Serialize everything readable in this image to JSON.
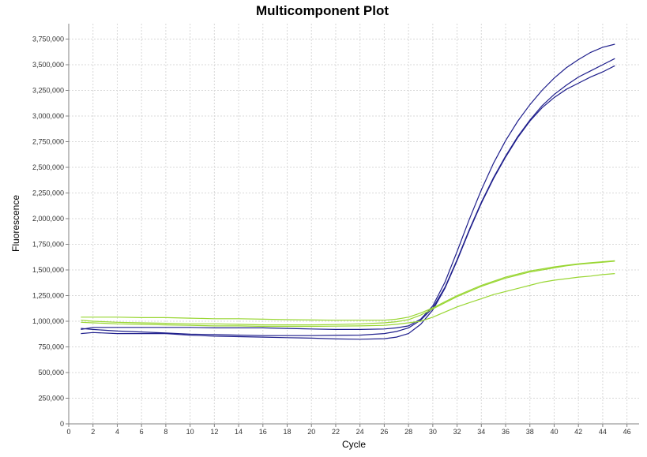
{
  "chart_data": {
    "type": "line",
    "title": "Multicomponent Plot",
    "xlabel": "Cycle",
    "ylabel": "Fluorescence",
    "xlim": [
      0,
      47
    ],
    "ylim": [
      0,
      3900000
    ],
    "x_ticks": [
      0,
      2,
      4,
      6,
      8,
      10,
      12,
      14,
      16,
      18,
      20,
      22,
      24,
      26,
      28,
      30,
      32,
      34,
      36,
      38,
      40,
      42,
      44,
      46
    ],
    "y_ticks": [
      0,
      250000,
      500000,
      750000,
      1000000,
      1250000,
      1500000,
      1750000,
      2000000,
      2250000,
      2500000,
      2750000,
      3000000,
      3250000,
      3500000,
      3750000
    ],
    "y_tick_labels": [
      "0",
      "250,000",
      "500,000",
      "750,000",
      "1,000,000",
      "1,250,000",
      "1,500,000",
      "1,750,000",
      "2,000,000",
      "2,250,000",
      "2,500,000",
      "2,750,000",
      "3,000,000",
      "3,250,000",
      "3,500,000",
      "3,750,000"
    ],
    "grid": true,
    "legend": "none",
    "series": [
      {
        "color": "#1f1f8c",
        "x": [
          1,
          2,
          4,
          6,
          8,
          10,
          12,
          14,
          16,
          18,
          20,
          22,
          24,
          26,
          27,
          28,
          29,
          30,
          31,
          32,
          33,
          34,
          35,
          36,
          37,
          38,
          39,
          40,
          41,
          42,
          43,
          44,
          45
        ],
        "values": [
          920000,
          940000,
          940000,
          940000,
          940000,
          940000,
          935000,
          935000,
          935000,
          930000,
          925000,
          920000,
          920000,
          925000,
          935000,
          955000,
          1020000,
          1150000,
          1380000,
          1680000,
          1990000,
          2280000,
          2540000,
          2760000,
          2950000,
          3110000,
          3250000,
          3370000,
          3470000,
          3550000,
          3620000,
          3670000,
          3700000
        ]
      },
      {
        "color": "#1f1f8c",
        "x": [
          1,
          2,
          4,
          6,
          8,
          10,
          12,
          14,
          16,
          18,
          20,
          22,
          24,
          26,
          27,
          28,
          29,
          30,
          31,
          32,
          33,
          34,
          35,
          36,
          37,
          38,
          39,
          40,
          41,
          42,
          43,
          44,
          45
        ],
        "values": [
          930000,
          920000,
          905000,
          895000,
          885000,
          875000,
          870000,
          865000,
          860000,
          860000,
          860000,
          862000,
          865000,
          880000,
          900000,
          935000,
          1010000,
          1130000,
          1330000,
          1600000,
          1890000,
          2160000,
          2400000,
          2610000,
          2800000,
          2960000,
          3100000,
          3210000,
          3300000,
          3380000,
          3440000,
          3500000,
          3560000
        ]
      },
      {
        "color": "#1f1f8c",
        "x": [
          1,
          2,
          4,
          6,
          8,
          10,
          12,
          14,
          16,
          18,
          20,
          22,
          24,
          26,
          27,
          28,
          29,
          30,
          31,
          32,
          33,
          34,
          35,
          36,
          37,
          38,
          39,
          40,
          41,
          42,
          43,
          44,
          45
        ],
        "values": [
          880000,
          890000,
          880000,
          880000,
          880000,
          865000,
          855000,
          850000,
          845000,
          840000,
          835000,
          828000,
          825000,
          830000,
          845000,
          880000,
          970000,
          1110000,
          1320000,
          1590000,
          1880000,
          2150000,
          2390000,
          2600000,
          2790000,
          2950000,
          3080000,
          3180000,
          3260000,
          3320000,
          3380000,
          3430000,
          3490000
        ]
      },
      {
        "color": "#99d633",
        "x": [
          1,
          2,
          4,
          6,
          8,
          10,
          12,
          14,
          16,
          18,
          20,
          22,
          24,
          26,
          27,
          28,
          29,
          30,
          31,
          32,
          33,
          34,
          35,
          36,
          37,
          38,
          39,
          40,
          41,
          42,
          43,
          44,
          45
        ],
        "values": [
          1040000,
          1040000,
          1040000,
          1035000,
          1035000,
          1030000,
          1025000,
          1025000,
          1020000,
          1015000,
          1012000,
          1010000,
          1010000,
          1010000,
          1020000,
          1040000,
          1080000,
          1130000,
          1190000,
          1250000,
          1300000,
          1350000,
          1390000,
          1430000,
          1460000,
          1490000,
          1510000,
          1530000,
          1545000,
          1560000,
          1570000,
          1580000,
          1590000
        ]
      },
      {
        "color": "#99d633",
        "x": [
          1,
          2,
          4,
          6,
          8,
          10,
          12,
          14,
          16,
          18,
          20,
          22,
          24,
          26,
          27,
          28,
          29,
          30,
          31,
          32,
          33,
          34,
          35,
          36,
          37,
          38,
          39,
          40,
          41,
          42,
          43,
          44,
          45
        ],
        "values": [
          1010000,
          1000000,
          990000,
          985000,
          980000,
          975000,
          975000,
          970000,
          965000,
          965000,
          965000,
          968000,
          975000,
          985000,
          995000,
          1015000,
          1060000,
          1120000,
          1180000,
          1240000,
          1290000,
          1340000,
          1380000,
          1420000,
          1450000,
          1480000,
          1500000,
          1520000,
          1540000,
          1555000,
          1565000,
          1575000,
          1585000
        ]
      },
      {
        "color": "#99d633",
        "x": [
          1,
          2,
          4,
          6,
          8,
          10,
          12,
          14,
          16,
          18,
          20,
          22,
          24,
          26,
          27,
          28,
          29,
          30,
          31,
          32,
          33,
          34,
          35,
          36,
          37,
          38,
          39,
          40,
          41,
          42,
          43,
          44,
          45
        ],
        "values": [
          990000,
          985000,
          975000,
          970000,
          965000,
          960000,
          955000,
          955000,
          950000,
          950000,
          950000,
          952000,
          955000,
          960000,
          970000,
          985000,
          1000000,
          1040000,
          1090000,
          1140000,
          1180000,
          1220000,
          1260000,
          1290000,
          1320000,
          1350000,
          1380000,
          1400000,
          1415000,
          1430000,
          1440000,
          1455000,
          1465000
        ]
      }
    ]
  }
}
